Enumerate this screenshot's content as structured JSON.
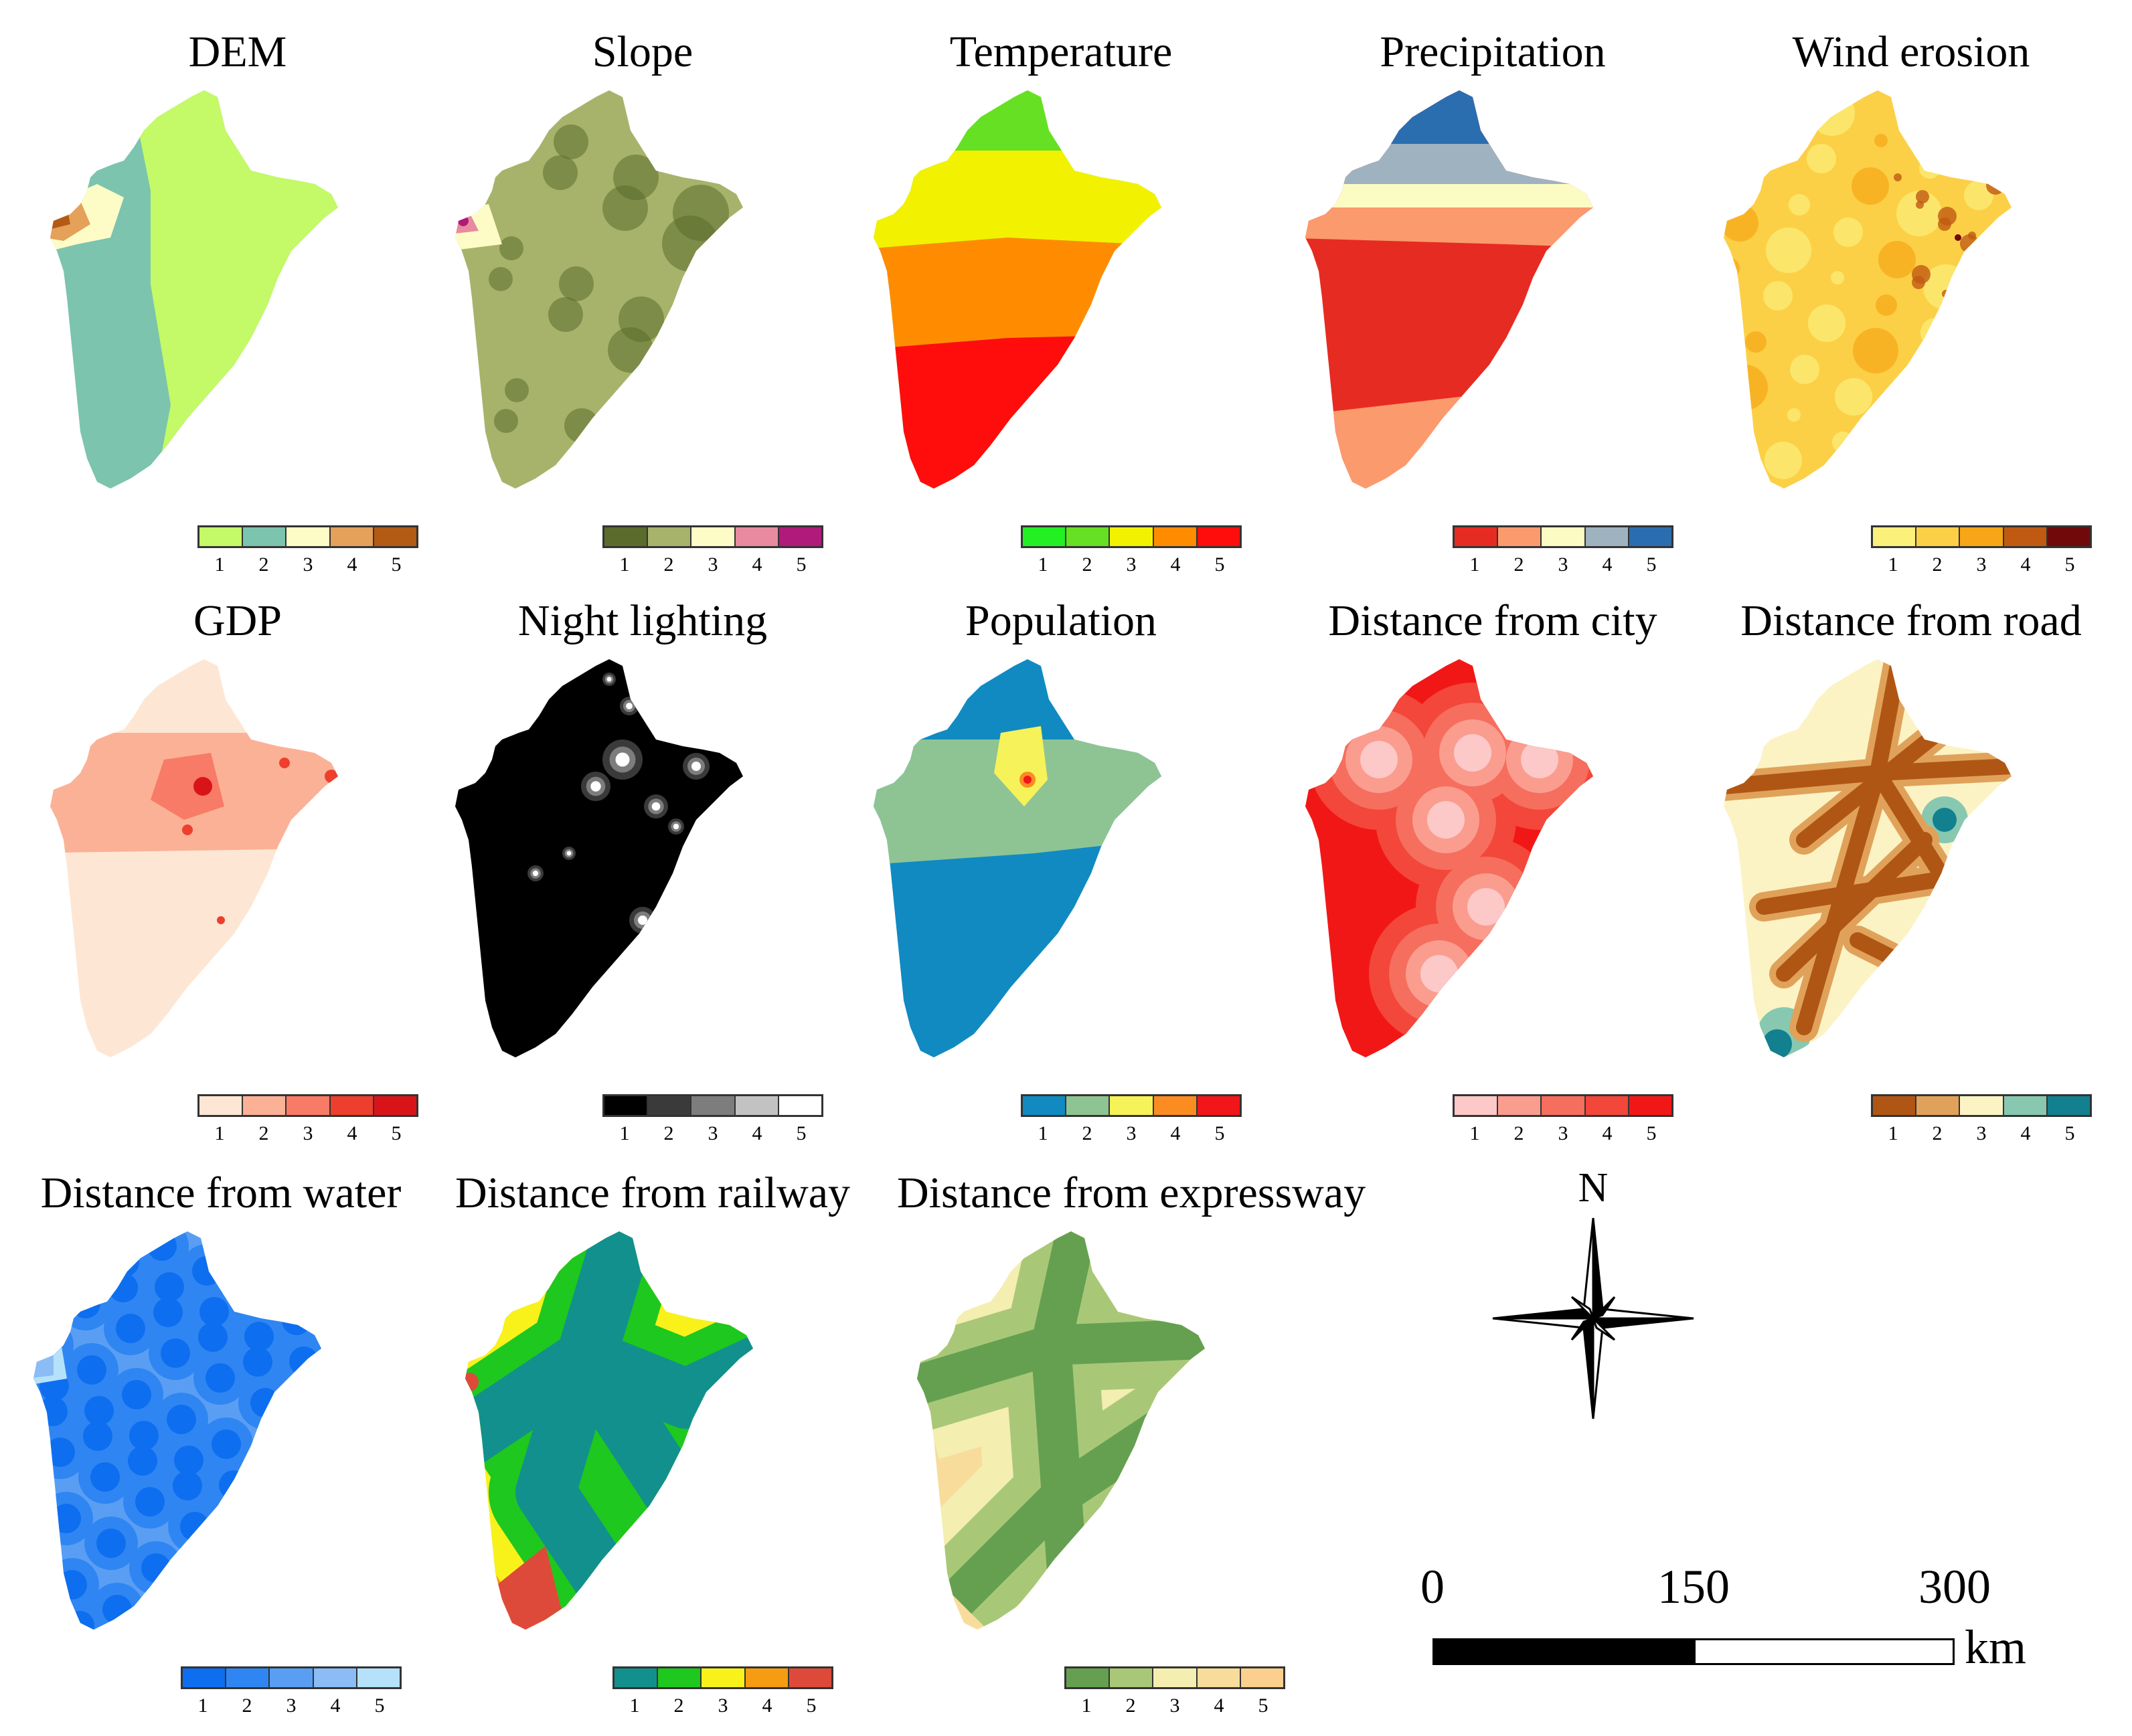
{
  "figure": {
    "panels": [
      {
        "title": "DEM",
        "colors": [
          "#c4f967",
          "#7cc4ae",
          "#fefcc6",
          "#e5a05a",
          "#b35a14"
        ],
        "labels": [
          "1",
          "2",
          "3",
          "4",
          "5"
        ]
      },
      {
        "title": "Slope",
        "colors": [
          "#5b6b2c",
          "#a7b36a",
          "#fefcc6",
          "#e88aa0",
          "#b01a7a"
        ],
        "labels": [
          "1",
          "2",
          "3",
          "4",
          "5"
        ]
      },
      {
        "title": "Temperature",
        "colors": [
          "#22f022",
          "#66e022",
          "#f2f200",
          "#ff8c00",
          "#ff0d0d"
        ],
        "labels": [
          "1",
          "2",
          "3",
          "4",
          "5"
        ]
      },
      {
        "title": "Precipitation",
        "colors": [
          "#e62b22",
          "#fb9a6c",
          "#fdfbc4",
          "#9fb2c0",
          "#2a6eb0"
        ],
        "labels": [
          "1",
          "2",
          "3",
          "4",
          "5"
        ]
      },
      {
        "title": "Wind erosion",
        "colors": [
          "#fbf07a",
          "#fcd046",
          "#f6a616",
          "#c05a12",
          "#700a0a"
        ],
        "labels": [
          "1",
          "2",
          "3",
          "4",
          "5"
        ]
      },
      {
        "title": "GDP",
        "colors": [
          "#fde7d4",
          "#fbb196",
          "#f77b66",
          "#ee3f2e",
          "#d91418"
        ],
        "labels": [
          "1",
          "2",
          "3",
          "4",
          "5"
        ]
      },
      {
        "title": "Night lighting",
        "colors": [
          "#000000",
          "#3a3a3a",
          "#7d7d7d",
          "#c2c2c2",
          "#ffffff"
        ],
        "labels": [
          "1",
          "2",
          "3",
          "4",
          "5"
        ]
      },
      {
        "title": "Population",
        "colors": [
          "#118ac2",
          "#8ec494",
          "#f6f25a",
          "#fb8c22",
          "#f2151a"
        ],
        "labels": [
          "1",
          "2",
          "3",
          "4",
          "5"
        ]
      },
      {
        "title": "Distance from city",
        "colors": [
          "#fcc8c8",
          "#fa9d8f",
          "#f66e5d",
          "#f2473a",
          "#f21717"
        ],
        "labels": [
          "1",
          "2",
          "3",
          "4",
          "5"
        ]
      },
      {
        "title": "Distance from road",
        "colors": [
          "#b05614",
          "#e0a25a",
          "#fcf3c4",
          "#88c8b0",
          "#12808e"
        ],
        "labels": [
          "1",
          "2",
          "3",
          "4",
          "5"
        ]
      },
      {
        "title": "Distance from water",
        "colors": [
          "#0d6ef0",
          "#2f86f2",
          "#5a9ef4",
          "#8bbcf6",
          "#b5e2fa"
        ],
        "labels": [
          "1",
          "2",
          "3",
          "4",
          "5"
        ]
      },
      {
        "title": "Distance from railway",
        "colors": [
          "#12908e",
          "#1ec81e",
          "#f8f21a",
          "#f69c12",
          "#de4a3a"
        ],
        "labels": [
          "1",
          "2",
          "3",
          "4",
          "5"
        ]
      },
      {
        "title": "Distance from expressway",
        "colors": [
          "#64a050",
          "#a8c878",
          "#f4eeb0",
          "#f8dc9c",
          "#fbd08e"
        ],
        "labels": [
          "1",
          "2",
          "3",
          "4",
          "5"
        ]
      }
    ]
  },
  "compass": {
    "label": "N"
  },
  "scale": {
    "ticks": [
      "0",
      "150",
      "300"
    ],
    "unit": "km"
  }
}
